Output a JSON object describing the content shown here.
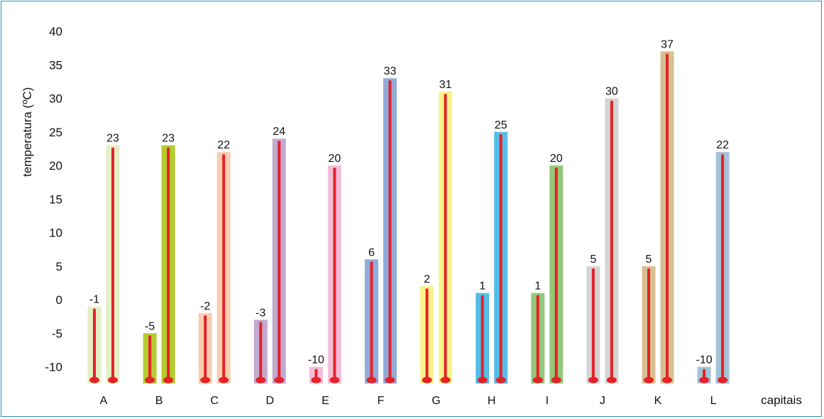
{
  "chart_data": {
    "type": "bar",
    "ylabel": "temperatura (ºC)",
    "xlabel": "capitais",
    "ylim": [
      -12.5,
      40
    ],
    "yticks": [
      40,
      35,
      30,
      25,
      20,
      15,
      10,
      5,
      0,
      -5,
      -10
    ],
    "grid": false,
    "categories": [
      "A",
      "B",
      "C",
      "D",
      "E",
      "F",
      "G",
      "H",
      "I",
      "J",
      "K",
      "L"
    ],
    "series": [
      {
        "values": [
          -1,
          -5,
          -2,
          -3,
          -10,
          6,
          2,
          1,
          1,
          5,
          5,
          -10
        ]
      },
      {
        "values": [
          23,
          23,
          22,
          24,
          20,
          33,
          31,
          25,
          20,
          30,
          37,
          22
        ]
      }
    ],
    "colors": [
      {
        "light": "#e6efc4",
        "dark": "#e6efc4"
      },
      {
        "light": "#b3cc2e",
        "dark": "#b3cc2e"
      },
      {
        "light": "#f6cfae",
        "dark": "#f6cfae"
      },
      {
        "light": "#c2a9cf",
        "dark": "#c2a9cf"
      },
      {
        "light": "#f5bcd6",
        "dark": "#f5bcd6"
      },
      {
        "light": "#92abd8",
        "dark": "#92abd8"
      },
      {
        "light": "#fbf28a",
        "dark": "#fbf28a"
      },
      {
        "light": "#55bde8",
        "dark": "#55bde8"
      },
      {
        "light": "#94c87a",
        "dark": "#94c87a"
      },
      {
        "light": "#d4d4d4",
        "dark": "#d4d4d4"
      },
      {
        "light": "#d6c091",
        "dark": "#d6c091"
      },
      {
        "light": "#a3c3d6",
        "dark": "#a3c3d6"
      }
    ],
    "thermometer_color": "#e52228"
  }
}
